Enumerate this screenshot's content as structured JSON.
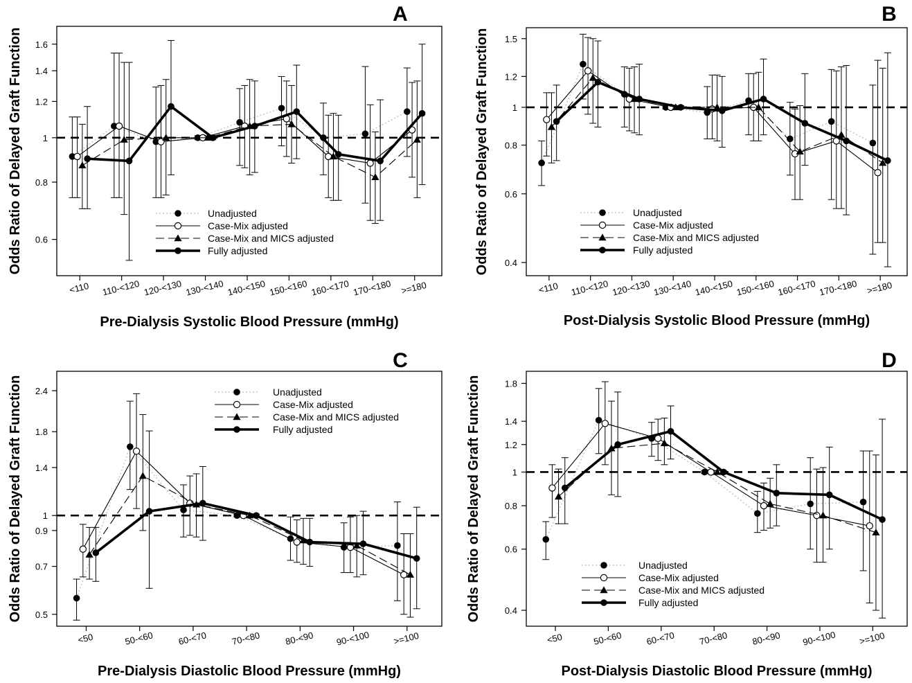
{
  "series_names": [
    "Unadjusted",
    "Case-Mix adjusted",
    "Case-Mix and MICS adjusted",
    "Fully adjusted"
  ],
  "chart_data": [
    {
      "type": "line",
      "panel": "A",
      "xlabel": "Pre-Dialysis Systolic Blood Pressure (mmHg)",
      "ylabel": "Odds Ratio of Delayed Graft Function",
      "y_scale": "log",
      "ylim": [
        0.5,
        1.75
      ],
      "yticks": [
        0.6,
        0.8,
        1,
        1.2,
        1.4,
        1.6
      ],
      "ytick_labels": [
        "0.6",
        "0.8",
        "1",
        "1.2",
        "1.4",
        "1.6"
      ],
      "categories": [
        "<110",
        "110-<120",
        "120-<130",
        "130-<140",
        "140-<150",
        "150-<160",
        "160-<170",
        "170-<180",
        ">=180"
      ],
      "reference_line": 1,
      "legend_position": "bottom-center",
      "series": [
        {
          "name": "Unadjusted",
          "values": [
            0.91,
            1.06,
            0.98,
            1.0,
            1.08,
            1.16,
            1.0,
            1.02,
            1.14
          ],
          "lower": [
            0.74,
            0.74,
            0.74,
            0.99,
            0.87,
            0.96,
            0.83,
            0.72,
            0.91
          ],
          "upper": [
            1.11,
            1.53,
            1.29,
            1.01,
            1.28,
            1.36,
            1.19,
            1.43,
            1.42
          ]
        },
        {
          "name": "Case-Mix adjusted",
          "values": [
            0.91,
            1.06,
            0.98,
            1.0,
            1.06,
            1.1,
            0.91,
            0.88,
            1.04
          ],
          "lower": [
            0.74,
            0.74,
            0.74,
            0.99,
            0.86,
            0.91,
            0.74,
            0.66,
            0.82
          ],
          "upper": [
            1.11,
            1.53,
            1.3,
            1.01,
            1.3,
            1.33,
            1.12,
            1.18,
            1.32
          ]
        },
        {
          "name": "Case-Mix and MICS adjusted",
          "values": [
            0.87,
            0.99,
            1.0,
            1.0,
            1.06,
            1.07,
            0.91,
            0.82,
            0.99
          ],
          "lower": [
            0.7,
            0.68,
            0.75,
            0.99,
            0.83,
            0.88,
            0.73,
            0.65,
            0.74
          ],
          "upper": [
            1.07,
            1.46,
            1.34,
            1.01,
            1.34,
            1.3,
            1.13,
            1.03,
            1.33
          ]
        },
        {
          "name": "Fully adjusted",
          "values": [
            0.9,
            0.89,
            1.17,
            1.0,
            1.06,
            1.14,
            0.92,
            0.89,
            1.13
          ],
          "lower": [
            0.7,
            0.54,
            0.83,
            0.99,
            0.84,
            0.9,
            0.73,
            0.66,
            0.79
          ],
          "upper": [
            1.17,
            1.46,
            1.63,
            1.01,
            1.33,
            1.44,
            1.12,
            1.21,
            1.6
          ]
        }
      ]
    },
    {
      "type": "line",
      "panel": "B",
      "xlabel": "Post-Dialysis Systolic Blood Pressure (mmHg)",
      "ylabel": "Odds Ratio of Delayed Graft Function",
      "y_scale": "log",
      "ylim": [
        0.37,
        1.6
      ],
      "yticks": [
        0.4,
        0.6,
        0.8,
        1,
        1.2,
        1.5
      ],
      "ytick_labels": [
        "0.4",
        "0.6",
        "0.8",
        "1",
        "1.2",
        "1.5"
      ],
      "categories": [
        "<110",
        "110-<120",
        "120-<130",
        "130-<140",
        "140-<150",
        "150-<160",
        "160-<170",
        "170-<180",
        ">=180"
      ],
      "reference_line": 1,
      "legend_position": "bottom-center",
      "series": [
        {
          "name": "Unadjusted",
          "values": [
            0.72,
            1.29,
            1.08,
            1.0,
            0.97,
            1.04,
            0.83,
            0.92,
            0.81
          ],
          "lower": [
            0.63,
            1.05,
            0.89,
            0.99,
            0.83,
            0.85,
            0.67,
            0.58,
            0.42
          ],
          "upper": [
            0.82,
            1.54,
            1.27,
            1.01,
            1.13,
            1.22,
            1.03,
            1.25,
            1.14
          ]
        },
        {
          "name": "Case-Mix adjusted",
          "values": [
            0.93,
            1.24,
            1.05,
            1.0,
            0.99,
            1.0,
            0.76,
            0.82,
            0.68
          ],
          "lower": [
            0.75,
            0.96,
            0.87,
            0.99,
            0.83,
            0.82,
            0.58,
            0.55,
            0.45
          ],
          "upper": [
            1.09,
            1.51,
            1.26,
            1.01,
            1.21,
            1.22,
            0.99,
            1.24,
            1.32
          ]
        },
        {
          "name": "Case-Mix and MICS adjusted",
          "values": [
            0.89,
            1.19,
            1.05,
            1.0,
            1.0,
            1.0,
            0.77,
            0.85,
            0.72
          ],
          "lower": [
            0.72,
            0.91,
            0.86,
            0.99,
            0.82,
            0.82,
            0.58,
            0.55,
            0.45
          ],
          "upper": [
            1.09,
            1.5,
            1.27,
            1.01,
            1.21,
            1.23,
            1.01,
            1.27,
            1.26
          ]
        },
        {
          "name": "Fully adjusted",
          "values": [
            0.92,
            1.16,
            1.05,
            1.0,
            0.98,
            1.05,
            0.91,
            0.82,
            0.73
          ],
          "lower": [
            0.73,
            0.89,
            0.85,
            0.99,
            0.79,
            0.85,
            0.71,
            0.53,
            0.39
          ],
          "upper": [
            1.14,
            1.48,
            1.29,
            1.01,
            1.2,
            1.33,
            1.22,
            1.28,
            1.38
          ]
        }
      ]
    },
    {
      "type": "line",
      "panel": "C",
      "xlabel": "Pre-Dialysis Diastolic Blood Pressure (mmHg)",
      "ylabel": "Odds Ratio of Delayed Graft Function",
      "y_scale": "log",
      "ylim": [
        0.46,
        2.75
      ],
      "yticks": [
        0.5,
        0.7,
        0.9,
        1,
        1.4,
        1.8,
        2.4
      ],
      "ytick_labels": [
        "0.5",
        "0.7",
        "0.9",
        "1",
        "1.4",
        "1.8",
        "2.4"
      ],
      "categories": [
        "<50",
        "50-<60",
        "60-<70",
        "70-<80",
        "80-<90",
        "90-<100",
        ">=100"
      ],
      "reference_line": 1,
      "legend_position": "top-center",
      "series": [
        {
          "name": "Unadjusted",
          "values": [
            0.56,
            1.62,
            1.04,
            1.0,
            0.85,
            0.8,
            0.81
          ],
          "lower": [
            0.48,
            1.2,
            0.86,
            0.99,
            0.73,
            0.67,
            0.55
          ],
          "upper": [
            0.64,
            2.23,
            1.24,
            1.01,
            0.99,
            0.95,
            1.1
          ]
        },
        {
          "name": "Case-Mix adjusted",
          "values": [
            0.79,
            1.57,
            1.09,
            1.0,
            0.83,
            0.8,
            0.66
          ],
          "lower": [
            0.65,
            1.05,
            0.87,
            0.99,
            0.72,
            0.67,
            0.5
          ],
          "upper": [
            0.94,
            2.35,
            1.32,
            1.01,
            0.97,
            0.99,
            0.88
          ]
        },
        {
          "name": "Case-Mix and MICS adjusted",
          "values": [
            0.76,
            1.32,
            1.08,
            1.0,
            0.84,
            0.81,
            0.66
          ],
          "lower": [
            0.64,
            0.9,
            0.86,
            0.99,
            0.71,
            0.65,
            0.49
          ],
          "upper": [
            0.92,
            2.03,
            1.34,
            1.01,
            0.98,
            1.0,
            0.88
          ]
        },
        {
          "name": "Fully adjusted",
          "values": [
            0.77,
            1.03,
            1.09,
            1.0,
            0.83,
            0.82,
            0.74
          ],
          "lower": [
            0.63,
            0.6,
            0.84,
            0.99,
            0.7,
            0.66,
            0.52
          ],
          "upper": [
            0.92,
            1.81,
            1.41,
            1.01,
            0.98,
            1.03,
            1.06
          ]
        }
      ]
    },
    {
      "type": "line",
      "panel": "D",
      "xlabel": "Post-Dialysis Diastolic Blood Pressure (mmHg)",
      "ylabel": "Odds Ratio of Delayed Graft Function",
      "y_scale": "log",
      "ylim": [
        0.36,
        1.95
      ],
      "yticks": [
        0.4,
        0.6,
        0.8,
        1,
        1.2,
        1.4,
        1.8
      ],
      "ytick_labels": [
        "0.4",
        "0.6",
        "0.8",
        "1",
        "1.2",
        "1.4",
        "1.8"
      ],
      "categories": [
        "<50",
        "50-<60",
        "60-<70",
        "70-<80",
        "80-<90",
        "90-<100",
        ">=100"
      ],
      "reference_line": 1,
      "legend_position": "bottom-left",
      "series": [
        {
          "name": "Unadjusted",
          "values": [
            0.64,
            1.41,
            1.25,
            1.0,
            0.76,
            0.81,
            0.82
          ],
          "lower": [
            0.56,
            1.13,
            1.11,
            0.99,
            0.67,
            0.6,
            0.52
          ],
          "upper": [
            0.72,
            1.74,
            1.39,
            1.01,
            0.88,
            1.1,
            1.15
          ]
        },
        {
          "name": "Case-Mix adjusted",
          "values": [
            0.9,
            1.38,
            1.25,
            1.0,
            0.8,
            0.75,
            0.7
          ],
          "lower": [
            0.74,
            1.05,
            1.08,
            0.99,
            0.68,
            0.55,
            0.42
          ],
          "upper": [
            1.05,
            1.82,
            1.42,
            1.01,
            0.93,
            1.02,
            1.15
          ]
        },
        {
          "name": "Case-Mix and MICS adjusted",
          "values": [
            0.85,
            1.17,
            1.21,
            1.0,
            0.81,
            0.75,
            0.67
          ],
          "lower": [
            0.71,
            0.86,
            1.05,
            0.99,
            0.69,
            0.55,
            0.4
          ],
          "upper": [
            1.02,
            1.6,
            1.43,
            1.01,
            0.96,
            1.03,
            1.12
          ]
        },
        {
          "name": "Fully adjusted",
          "values": [
            0.9,
            1.2,
            1.31,
            1.0,
            0.87,
            0.86,
            0.73
          ],
          "lower": [
            0.71,
            0.85,
            1.09,
            0.99,
            0.7,
            0.6,
            0.38
          ],
          "upper": [
            1.1,
            1.7,
            1.55,
            1.01,
            1.05,
            1.18,
            1.42
          ]
        }
      ]
    }
  ]
}
